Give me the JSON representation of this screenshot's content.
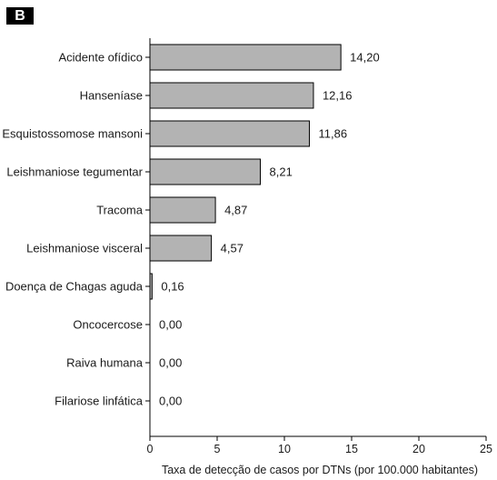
{
  "panel_label": "B",
  "chart_data": {
    "type": "bar",
    "orientation": "horizontal",
    "categories": [
      "Acidente ofídico",
      "Hanseníase",
      "Esquistossomose mansoni",
      "Leishmaniose tegumentar",
      "Tracoma",
      "Leishmaniose visceral",
      "Doença de Chagas aguda",
      "Oncocercose",
      "Raiva humana",
      "Filariose linfática"
    ],
    "values": [
      14.2,
      12.16,
      11.86,
      8.21,
      4.87,
      4.57,
      0.16,
      0.0,
      0.0,
      0.0
    ],
    "value_labels": [
      "14,20",
      "12,16",
      "11,86",
      "8,21",
      "4,87",
      "4,57",
      "0,16",
      "0,00",
      "0,00",
      "0,00"
    ],
    "title": "",
    "xlabel": "Taxa de detecção de casos por DTNs (por 100.000 habitantes)",
    "ylabel": "",
    "xlim": [
      0,
      25
    ],
    "xticks": [
      0,
      5,
      10,
      15,
      20,
      25
    ],
    "grid": false,
    "bar_color": "#b3b3b3",
    "bar_edge_color": "#000000"
  }
}
